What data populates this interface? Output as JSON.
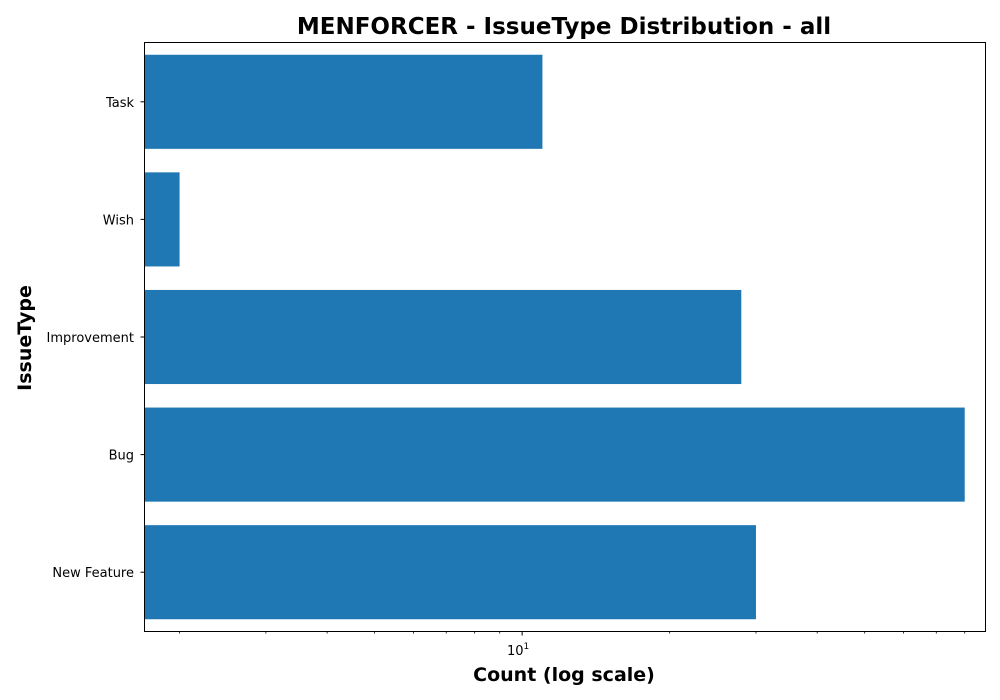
{
  "chart_data": {
    "type": "bar",
    "orientation": "horizontal",
    "title": "MENFORCER - IssueType Distribution - all",
    "xlabel": "Count (log scale)",
    "ylabel": "IssueType",
    "x_scale": "log",
    "xlim": [
      1.7,
      88
    ],
    "x_tick_labels": [
      {
        "value": 10,
        "base": "10",
        "exponent": "1"
      }
    ],
    "categories": [
      "New Feature",
      "Bug",
      "Improvement",
      "Wish",
      "Task"
    ],
    "values": [
      30,
      80,
      28,
      2,
      11
    ],
    "bar_color": "#1f77b4",
    "grid": false,
    "legend": "none"
  }
}
